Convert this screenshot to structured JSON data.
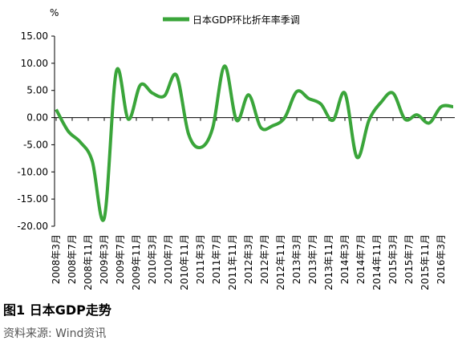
{
  "chart_data": {
    "type": "line",
    "unit_label": "%",
    "title": "图1 日本GDP走势",
    "source": "资料来源: Wind资讯",
    "x": [
      "2008-03",
      "2008-06",
      "2008-09",
      "2008-12",
      "2009-03",
      "2009-06",
      "2009-09",
      "2009-12",
      "2010-03",
      "2010-06",
      "2010-09",
      "2010-12",
      "2011-03",
      "2011-06",
      "2011-09",
      "2011-12",
      "2012-03",
      "2012-06",
      "2012-09",
      "2012-12",
      "2013-03",
      "2013-06",
      "2013-09",
      "2013-12",
      "2014-03",
      "2014-06",
      "2014-09",
      "2014-12",
      "2015-03",
      "2015-06",
      "2015-09",
      "2015-12",
      "2016-03",
      "2016-06"
    ],
    "series": [
      {
        "name": "日本GDP环比折年率季调",
        "color": "#3aa53a",
        "values": [
          1.5,
          -2.5,
          -4.5,
          -8,
          -18.5,
          8.5,
          -0.3,
          6,
          4.5,
          4,
          7.8,
          -3,
          -5.5,
          -2,
          9.5,
          -0.5,
          4.2,
          -1.8,
          -1.5,
          0,
          4.8,
          3.5,
          2.5,
          -0.5,
          4.5,
          -7.3,
          -0.5,
          2.8,
          4.5,
          -0.3,
          0.5,
          -1,
          2,
          2
        ]
      }
    ],
    "ylim": [
      -20,
      15
    ],
    "yticks": [
      {
        "value": 15,
        "label": "15.00"
      },
      {
        "value": 10,
        "label": "10.00"
      },
      {
        "value": 5,
        "label": "5.00"
      },
      {
        "value": 0,
        "label": "0.00"
      },
      {
        "value": -5,
        "label": "-5.00"
      },
      {
        "value": -10,
        "label": "-10.00"
      },
      {
        "value": -15,
        "label": "-15.00"
      },
      {
        "value": -20,
        "label": "-20.00"
      }
    ],
    "xticks": [
      {
        "value": "2008-03",
        "label": "2008年3月"
      },
      {
        "value": "2008-07",
        "label": "2008年7月"
      },
      {
        "value": "2008-11",
        "label": "2008年11月"
      },
      {
        "value": "2009-03",
        "label": "2009年3月"
      },
      {
        "value": "2009-07",
        "label": "2009年7月"
      },
      {
        "value": "2009-11",
        "label": "2009年11月"
      },
      {
        "value": "2010-03",
        "label": "2010年3月"
      },
      {
        "value": "2010-07",
        "label": "2010年7月"
      },
      {
        "value": "2010-11",
        "label": "2010年11月"
      },
      {
        "value": "2011-03",
        "label": "2011年3月"
      },
      {
        "value": "2011-07",
        "label": "2011年7月"
      },
      {
        "value": "2011-11",
        "label": "2011年11月"
      },
      {
        "value": "2012-03",
        "label": "2012年3月"
      },
      {
        "value": "2012-07",
        "label": "2012年7月"
      },
      {
        "value": "2012-11",
        "label": "2012年11月"
      },
      {
        "value": "2013-03",
        "label": "2013年3月"
      },
      {
        "value": "2013-07",
        "label": "2013年7月"
      },
      {
        "value": "2013-11",
        "label": "2013年11月"
      },
      {
        "value": "2014-03",
        "label": "2014年3月"
      },
      {
        "value": "2014-07",
        "label": "2014年7月"
      },
      {
        "value": "2014-11",
        "label": "2014年11月"
      },
      {
        "value": "2015-03",
        "label": "2015年3月"
      },
      {
        "value": "2015-07",
        "label": "2015年7月"
      },
      {
        "value": "2015-11",
        "label": "2015年11月"
      },
      {
        "value": "2016-03",
        "label": "2016年3月"
      }
    ],
    "legend": "top"
  }
}
